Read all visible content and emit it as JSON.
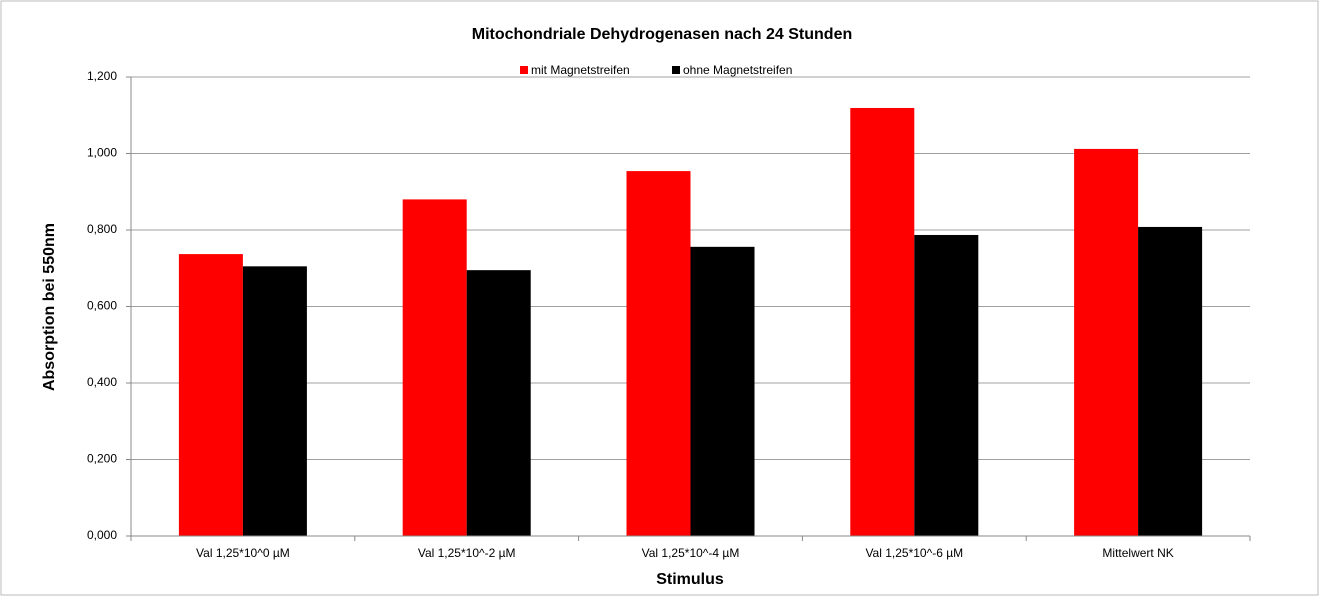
{
  "chart_data": {
    "type": "bar",
    "title": "Mitochondriale Dehydrogenasen nach 24 Stunden",
    "x_label": "Stimulus",
    "y_label": "Absorption bei 550nm",
    "categories": [
      "Val 1,25*10^0 µM",
      "Val 1,25*10^-2 µM",
      "Val 1,25*10^-4 µM",
      "Val 1,25*10^-6 µM",
      "Mittelwert NK"
    ],
    "series": [
      {
        "name": "mit Magnetstreifen",
        "color": "#ff0000",
        "values": [
          0.737,
          0.88,
          0.954,
          1.119,
          1.012
        ]
      },
      {
        "name": "ohne Magnetstreifen",
        "color": "#000000",
        "values": [
          0.705,
          0.695,
          0.756,
          0.787,
          0.808
        ]
      }
    ],
    "ylim": [
      0,
      1.2
    ],
    "yticks": [
      {
        "value": 0,
        "label": "0,000"
      },
      {
        "value": 0.2,
        "label": "0,200"
      },
      {
        "value": 0.4,
        "label": "0,400"
      },
      {
        "value": 0.6,
        "label": "0,600"
      },
      {
        "value": 0.8,
        "label": "0,800"
      },
      {
        "value": 1.0,
        "label": "1,000"
      },
      {
        "value": 1.2,
        "label": "1,200"
      }
    ],
    "grid": true,
    "legend": "top"
  }
}
